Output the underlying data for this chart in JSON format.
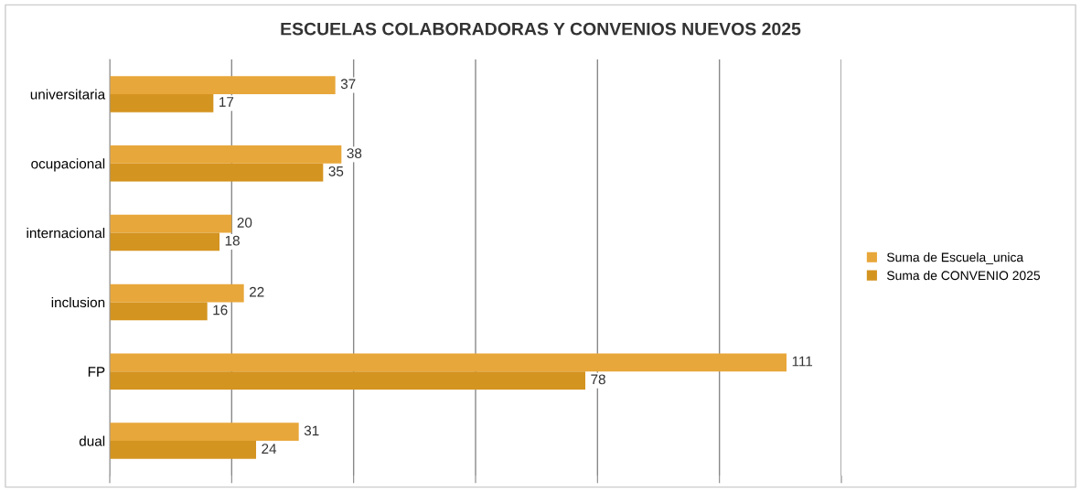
{
  "chart_data": {
    "type": "bar",
    "orientation": "horizontal",
    "title": "ESCUELAS COLABORADORAS Y CONVENIOS NUEVOS 2025",
    "categories": [
      "universitaria",
      "ocupacional",
      "internacional",
      "inclusion",
      "FP",
      "dual"
    ],
    "series": [
      {
        "name": "Suma de Escuela_unica",
        "color": "#e8a73a",
        "values": [
          37,
          38,
          20,
          22,
          111,
          31
        ]
      },
      {
        "name": "Suma de CONVENIO 2025",
        "color": "#d49420",
        "values": [
          17,
          35,
          18,
          16,
          78,
          24
        ]
      }
    ],
    "xlim": [
      0,
      120
    ],
    "xticks": [
      {
        "value": 0,
        "label": null
      },
      {
        "value": 20,
        "label": null
      },
      {
        "value": 40,
        "label": null
      },
      {
        "value": 60,
        "label": null
      },
      {
        "value": 80,
        "label": null
      },
      {
        "value": 100,
        "label": null
      },
      {
        "value": 120,
        "label": null
      }
    ],
    "tick_labels": "y",
    "grid": "x",
    "legend": "right",
    "data_labels": true
  }
}
